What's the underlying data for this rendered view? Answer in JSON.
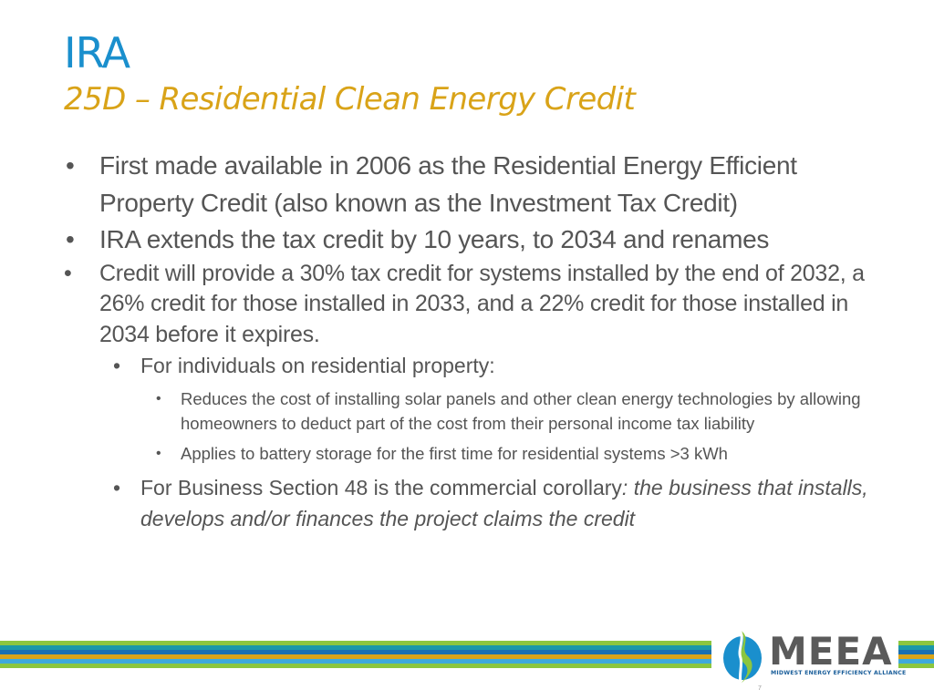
{
  "slide": {
    "title": "IRA",
    "subtitle": "25D – Residential Clean Energy Credit"
  },
  "bullets": {
    "b1": "First made available in 2006 as the Residential Energy Efficient Property Credit (also known as the Investment Tax Credit)",
    "b2": "IRA extends the tax credit by 10 years, to 2034 and renames",
    "b3": "Credit will provide a 30% tax credit for systems installed by the end of 2032, a 26% credit for those installed in 2033, and a 22% credit for those installed in 2034 before it expires.",
    "individuals": "For individuals on residential property:",
    "individuals_sub1": "Reduces the cost of installing solar panels and other clean energy technologies by allowing homeowners to deduct part of the cost from their personal income tax liability",
    "individuals_sub2": "Applies to battery storage for the first time for residential systems >3 kWh",
    "business_plain": "For Business Section 48 is the commercial corollary",
    "business_italic": ": the business that installs, develops and/or finances the project claims the credit",
    "bullet_glyph": "•"
  },
  "logo": {
    "name": "MEEA",
    "tagline": "MIDWEST ENERGY EFFICIENCY ALLIANCE"
  },
  "page_number": "7",
  "colors": {
    "title": "#1a8fcd",
    "subtitle": "#d9a318",
    "body_text": "#555555",
    "stripe_green": "#8cc63f",
    "stripe_teal": "#1b98a8",
    "stripe_blue": "#1a6fb0",
    "stripe_gold": "#d9a318",
    "stripe_lightblue": "#3fa9dc"
  }
}
